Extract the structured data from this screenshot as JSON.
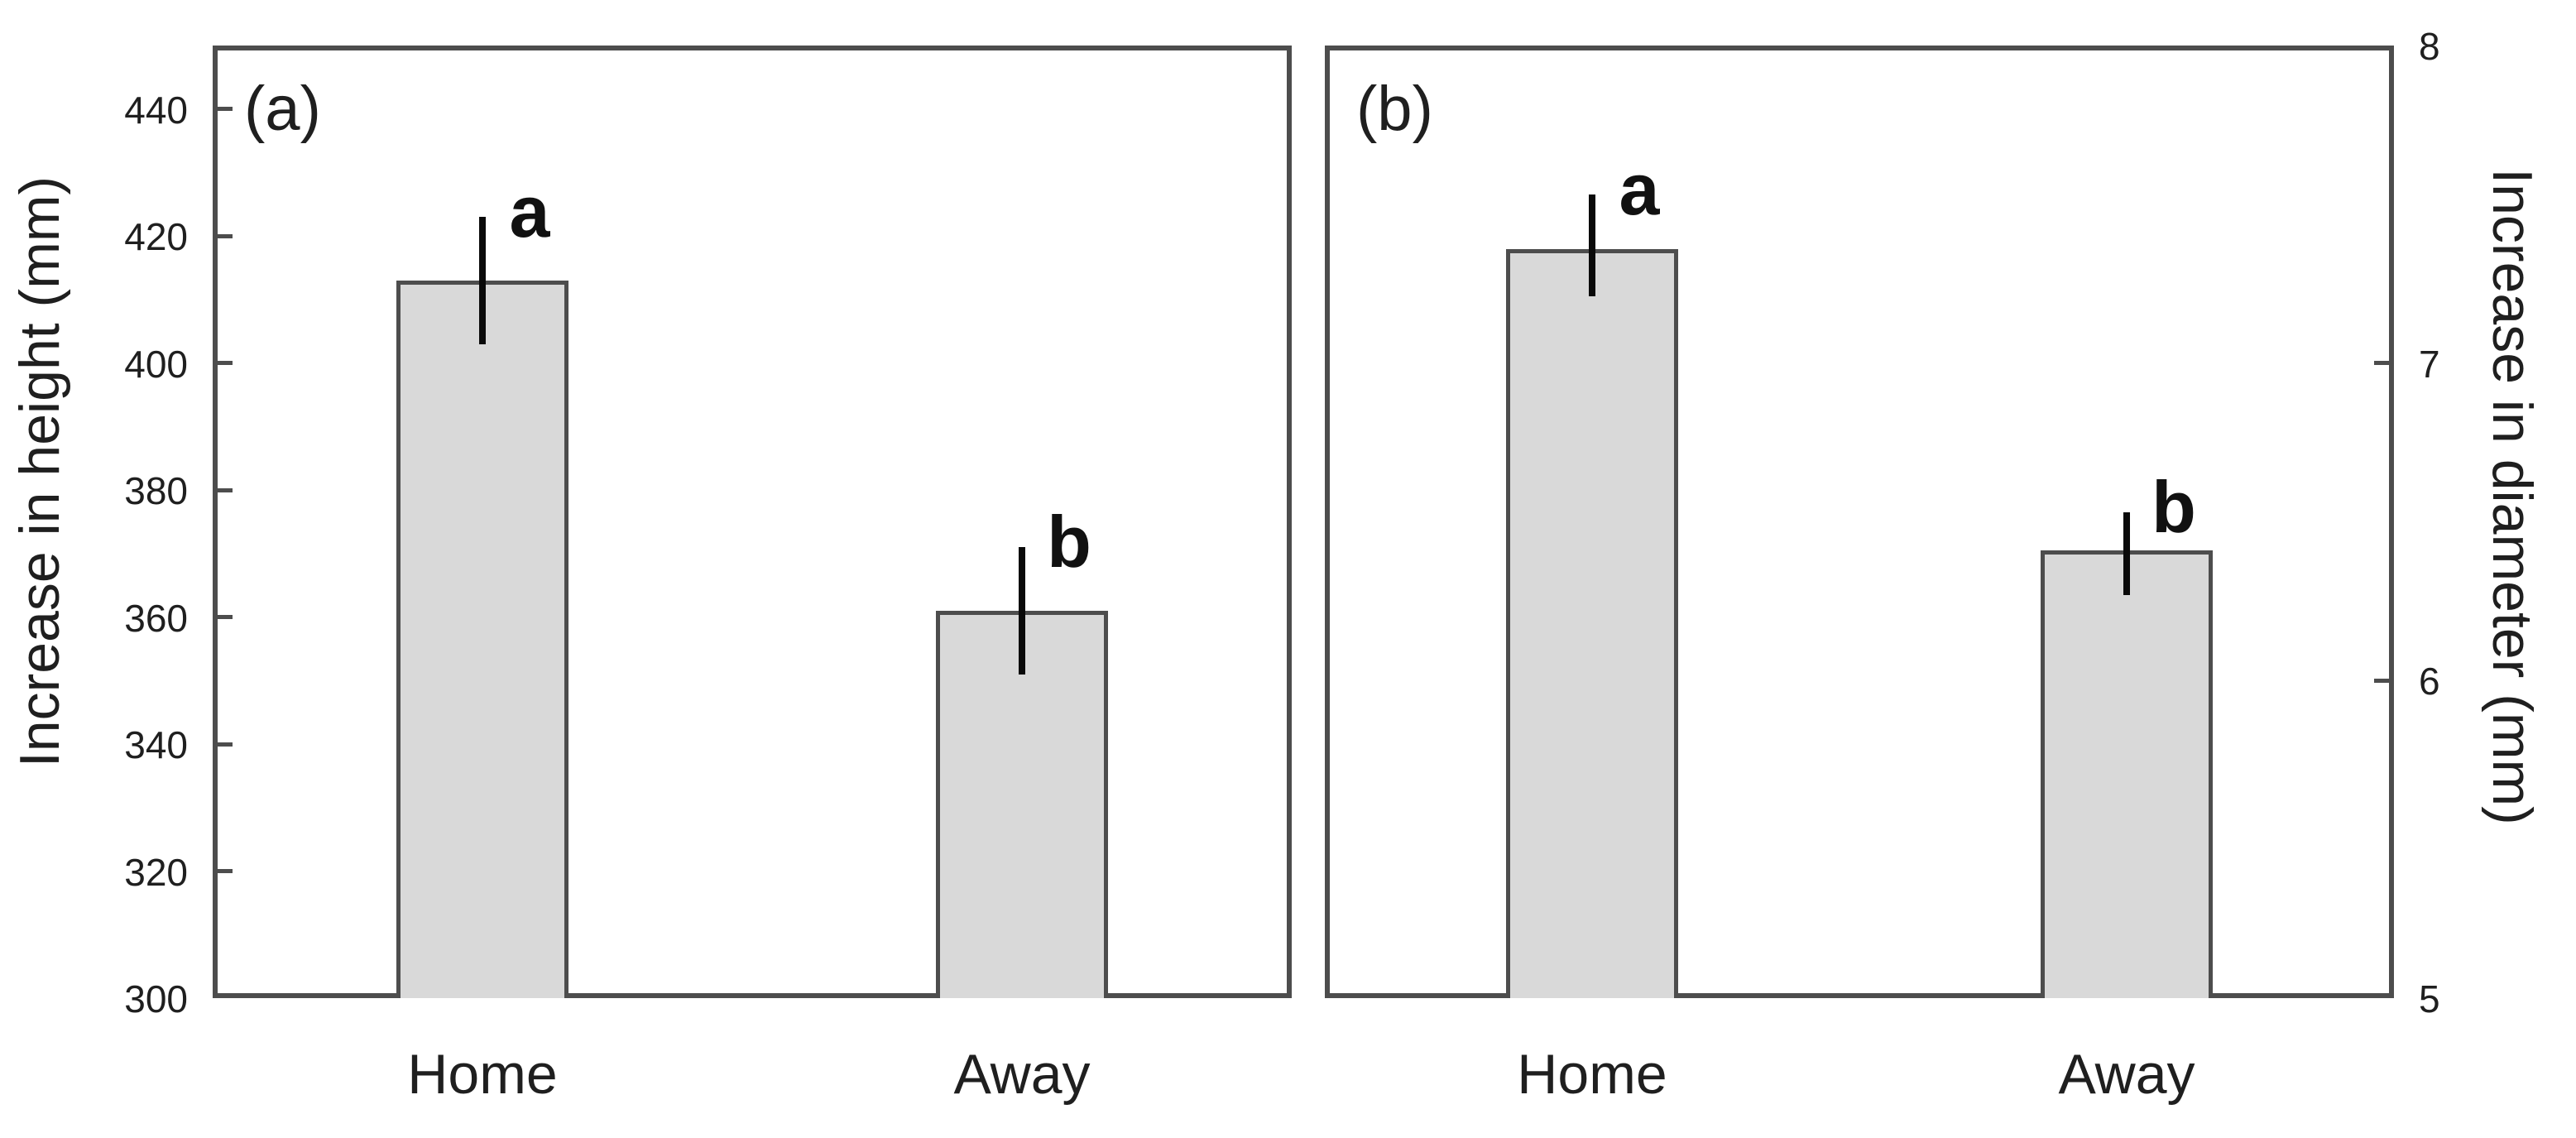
{
  "figure": {
    "kind": "two-panel bar chart with error bars",
    "background": "#ffffff",
    "colors": {
      "bar_fill": "#d9d9d9",
      "bar_border": "#4d4d4d",
      "axis_line": "#4d4d4d",
      "error_bar": "#0a0a0a",
      "text": "#1f1f1f"
    }
  },
  "chart_data": [
    {
      "type": "bar",
      "panel_label": "(a)",
      "ylabel": "Increase in height (mm)",
      "ylabel_side": "left",
      "ylim": [
        300,
        450
      ],
      "yticks": [
        300,
        320,
        340,
        360,
        380,
        400,
        420,
        440
      ],
      "categories": [
        "Home",
        "Away"
      ],
      "values": [
        413,
        361
      ],
      "error_low": [
        403,
        351
      ],
      "error_high": [
        423,
        371
      ],
      "sig_letters": [
        "a",
        "b"
      ],
      "grid": false,
      "legend": null
    },
    {
      "type": "bar",
      "panel_label": "(b)",
      "ylabel": "Increase in diameter (mm)",
      "ylabel_side": "right",
      "ylim": [
        5,
        8
      ],
      "yticks": [
        5,
        6,
        7,
        8
      ],
      "categories": [
        "Home",
        "Away"
      ],
      "values": [
        7.36,
        6.41
      ],
      "error_low": [
        7.21,
        6.27
      ],
      "error_high": [
        7.53,
        6.53
      ],
      "sig_letters": [
        "a",
        "b"
      ],
      "grid": false,
      "legend": null
    }
  ]
}
